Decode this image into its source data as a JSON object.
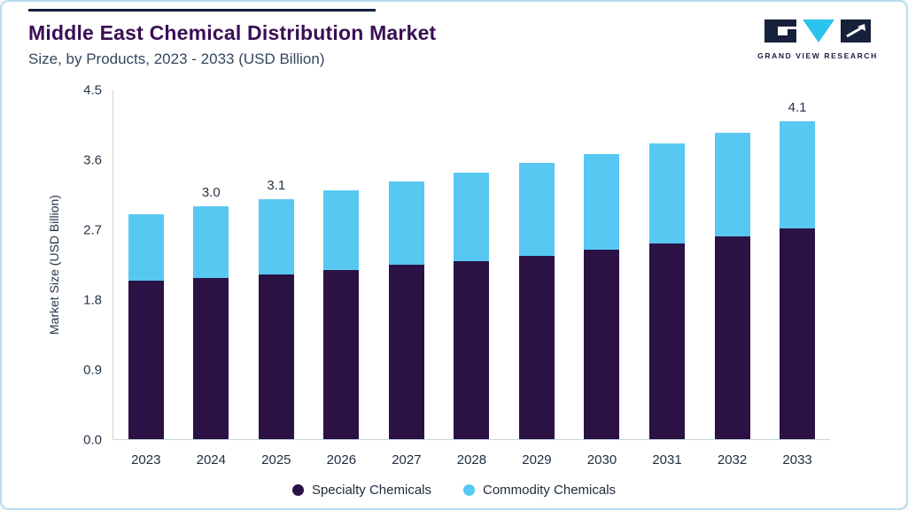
{
  "header": {
    "title": "Middle East Chemical Distribution Market",
    "subtitle": "Size, by Products, 2023 - 2033 (USD Billion)"
  },
  "logo": {
    "text": "GRAND VIEW RESEARCH",
    "navy": "#16213c",
    "cyan": "#2bc4ee"
  },
  "chart_data": {
    "type": "bar",
    "stacked": true,
    "title": "Middle East Chemical Distribution Market Size, by Products, 2023 - 2033 (USD Billion)",
    "xlabel": "",
    "ylabel": "Market Size (USD Billion)",
    "ylim": [
      0,
      4.5
    ],
    "yticks": [
      0,
      0.9,
      1.8,
      2.7,
      3.6,
      4.5
    ],
    "grid": false,
    "legend_position": "bottom",
    "categories": [
      "2023",
      "2024",
      "2025",
      "2026",
      "2027",
      "2028",
      "2029",
      "2030",
      "2031",
      "2032",
      "2033"
    ],
    "series": [
      {
        "name": "Specialty Chemicals",
        "color": "#2b1144",
        "values": [
          2.05,
          2.08,
          2.12,
          2.18,
          2.25,
          2.3,
          2.37,
          2.44,
          2.53,
          2.62,
          2.72
        ]
      },
      {
        "name": "Commodity Chemicals",
        "color": "#57c8f2",
        "values": [
          0.85,
          0.92,
          0.98,
          1.03,
          1.07,
          1.14,
          1.19,
          1.24,
          1.28,
          1.33,
          1.38
        ]
      }
    ],
    "totals": [
      2.9,
      3.0,
      3.1,
      3.21,
      3.32,
      3.44,
      3.56,
      3.68,
      3.81,
      3.95,
      4.1
    ],
    "annotations": [
      {
        "index": 1,
        "label": "3.0"
      },
      {
        "index": 2,
        "label": "3.1"
      },
      {
        "index": 10,
        "label": "4.1"
      }
    ]
  }
}
